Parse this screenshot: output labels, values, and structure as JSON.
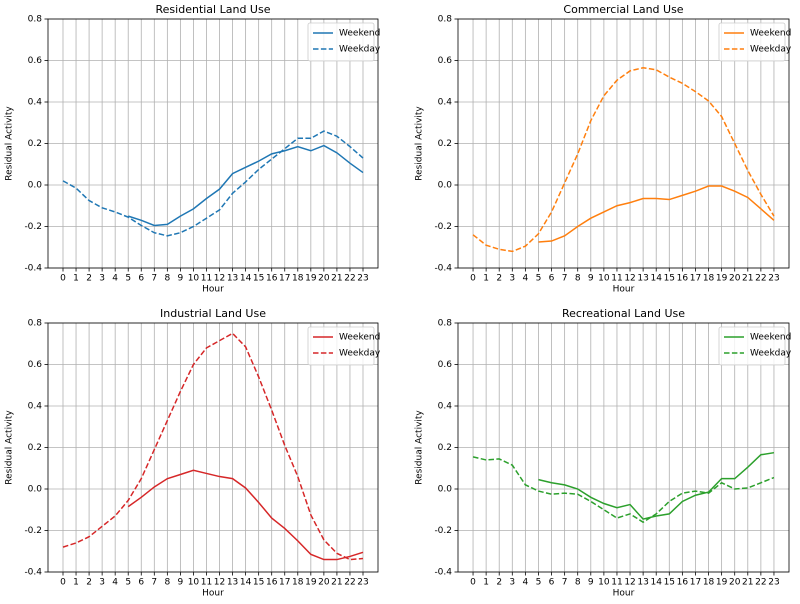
{
  "chart_data": [
    {
      "type": "line",
      "title": "Residential Land Use",
      "xlabel": "Hour",
      "ylabel": "Residual Activity",
      "x": [
        0,
        1,
        2,
        3,
        4,
        5,
        6,
        7,
        8,
        9,
        10,
        11,
        12,
        13,
        14,
        15,
        16,
        17,
        18,
        19,
        20,
        21,
        22,
        23
      ],
      "xlim": [
        -1.15,
        24.15
      ],
      "xticks": [
        0,
        1,
        2,
        3,
        4,
        5,
        6,
        7,
        8,
        9,
        10,
        11,
        12,
        13,
        14,
        15,
        16,
        17,
        18,
        19,
        20,
        21,
        22,
        23
      ],
      "ylim": [
        -0.4,
        0.8
      ],
      "yticks": [
        -0.4,
        -0.2,
        {
          "value": 0,
          "label": "0.0"
        },
        0.2,
        0.4,
        0.6,
        0.8
      ],
      "grid": true,
      "legend": "upper right",
      "series": [
        {
          "name": "Weekend",
          "color": "#1f77b4",
          "linestyle": "solid",
          "values": [
            null,
            null,
            null,
            null,
            null,
            -0.15,
            -0.17,
            -0.195,
            -0.19,
            -0.15,
            -0.115,
            -0.065,
            -0.02,
            0.055,
            0.085,
            0.115,
            0.15,
            0.165,
            0.185,
            0.165,
            0.19,
            0.155,
            0.105,
            0.06
          ]
        },
        {
          "name": "Weekday",
          "color": "#1f77b4",
          "linestyle": "dashed",
          "values": [
            0.02,
            -0.015,
            -0.075,
            -0.11,
            -0.13,
            -0.155,
            -0.195,
            -0.23,
            -0.245,
            -0.23,
            -0.2,
            -0.16,
            -0.12,
            -0.04,
            0.015,
            0.075,
            0.125,
            0.175,
            0.225,
            0.225,
            0.26,
            0.235,
            0.185,
            0.13
          ]
        }
      ]
    },
    {
      "type": "line",
      "title": "Commercial Land Use",
      "xlabel": "Hour",
      "ylabel": "Residual Activity",
      "x": [
        0,
        1,
        2,
        3,
        4,
        5,
        6,
        7,
        8,
        9,
        10,
        11,
        12,
        13,
        14,
        15,
        16,
        17,
        18,
        19,
        20,
        21,
        22,
        23
      ],
      "xlim": [
        -1.15,
        24.15
      ],
      "xticks": [
        0,
        1,
        2,
        3,
        4,
        5,
        6,
        7,
        8,
        9,
        10,
        11,
        12,
        13,
        14,
        15,
        16,
        17,
        18,
        19,
        20,
        21,
        22,
        23
      ],
      "ylim": [
        -0.4,
        0.8
      ],
      "yticks": [
        -0.4,
        -0.2,
        {
          "value": 0,
          "label": "0.0"
        },
        0.2,
        0.4,
        0.6,
        0.8
      ],
      "grid": true,
      "legend": "upper right",
      "series": [
        {
          "name": "Weekend",
          "color": "#ff7f0e",
          "linestyle": "solid",
          "values": [
            null,
            null,
            null,
            null,
            null,
            -0.275,
            -0.27,
            -0.245,
            -0.2,
            -0.16,
            -0.13,
            -0.1,
            -0.085,
            -0.065,
            -0.065,
            -0.07,
            -0.05,
            -0.03,
            -0.005,
            -0.005,
            -0.03,
            -0.06,
            -0.115,
            -0.17
          ]
        },
        {
          "name": "Weekday",
          "color": "#ff7f0e",
          "linestyle": "dashed",
          "values": [
            -0.24,
            -0.29,
            -0.31,
            -0.32,
            -0.295,
            -0.235,
            -0.13,
            0.01,
            0.15,
            0.31,
            0.43,
            0.505,
            0.55,
            0.565,
            0.555,
            0.52,
            0.49,
            0.45,
            0.405,
            0.33,
            0.2,
            0.07,
            -0.045,
            -0.15
          ]
        }
      ]
    },
    {
      "type": "line",
      "title": "Industrial Land Use",
      "xlabel": "Hour",
      "ylabel": "Residual Activity",
      "x": [
        0,
        1,
        2,
        3,
        4,
        5,
        6,
        7,
        8,
        9,
        10,
        11,
        12,
        13,
        14,
        15,
        16,
        17,
        18,
        19,
        20,
        21,
        22,
        23
      ],
      "xlim": [
        -1.15,
        24.15
      ],
      "xticks": [
        0,
        1,
        2,
        3,
        4,
        5,
        6,
        7,
        8,
        9,
        10,
        11,
        12,
        13,
        14,
        15,
        16,
        17,
        18,
        19,
        20,
        21,
        22,
        23
      ],
      "ylim": [
        -0.4,
        0.8
      ],
      "yticks": [
        -0.4,
        -0.2,
        {
          "value": 0,
          "label": "0.0"
        },
        0.2,
        0.4,
        0.6,
        0.8
      ],
      "grid": true,
      "legend": "upper right",
      "series": [
        {
          "name": "Weekend",
          "color": "#d62728",
          "linestyle": "solid",
          "values": [
            null,
            null,
            null,
            null,
            null,
            -0.085,
            -0.04,
            0.01,
            0.05,
            0.07,
            0.09,
            0.075,
            0.06,
            0.05,
            0.005,
            -0.065,
            -0.14,
            -0.19,
            -0.25,
            -0.315,
            -0.34,
            -0.34,
            -0.325,
            -0.305
          ]
        },
        {
          "name": "Weekday",
          "color": "#d62728",
          "linestyle": "dashed",
          "values": [
            -0.28,
            -0.26,
            -0.23,
            -0.18,
            -0.13,
            -0.055,
            0.05,
            0.19,
            0.33,
            0.47,
            0.6,
            0.68,
            0.715,
            0.75,
            0.685,
            0.54,
            0.38,
            0.21,
            0.06,
            -0.125,
            -0.245,
            -0.31,
            -0.34,
            -0.335
          ]
        }
      ]
    },
    {
      "type": "line",
      "title": "Recreational Land Use",
      "xlabel": "Hour",
      "ylabel": "Residual Activity",
      "x": [
        0,
        1,
        2,
        3,
        4,
        5,
        6,
        7,
        8,
        9,
        10,
        11,
        12,
        13,
        14,
        15,
        16,
        17,
        18,
        19,
        20,
        21,
        22,
        23
      ],
      "xlim": [
        -1.15,
        24.15
      ],
      "xticks": [
        0,
        1,
        2,
        3,
        4,
        5,
        6,
        7,
        8,
        9,
        10,
        11,
        12,
        13,
        14,
        15,
        16,
        17,
        18,
        19,
        20,
        21,
        22,
        23
      ],
      "ylim": [
        -0.4,
        0.8
      ],
      "yticks": [
        -0.4,
        -0.2,
        {
          "value": 0,
          "label": "0.0"
        },
        0.2,
        0.4,
        0.6,
        0.8
      ],
      "grid": true,
      "legend": "upper right",
      "series": [
        {
          "name": "Weekend",
          "color": "#2ca02c",
          "linestyle": "solid",
          "values": [
            null,
            null,
            null,
            null,
            null,
            0.045,
            0.03,
            0.02,
            0.0,
            -0.04,
            -0.07,
            -0.09,
            -0.075,
            -0.145,
            -0.13,
            -0.12,
            -0.06,
            -0.03,
            -0.015,
            0.05,
            0.05,
            0.105,
            0.165,
            0.175
          ]
        },
        {
          "name": "Weekday",
          "color": "#2ca02c",
          "linestyle": "dashed",
          "values": [
            0.155,
            0.14,
            0.145,
            0.115,
            0.02,
            -0.01,
            -0.025,
            -0.02,
            -0.025,
            -0.06,
            -0.1,
            -0.14,
            -0.12,
            -0.16,
            -0.12,
            -0.06,
            -0.02,
            -0.01,
            -0.02,
            0.03,
            0.0,
            0.005,
            0.03,
            0.055
          ]
        }
      ]
    }
  ]
}
